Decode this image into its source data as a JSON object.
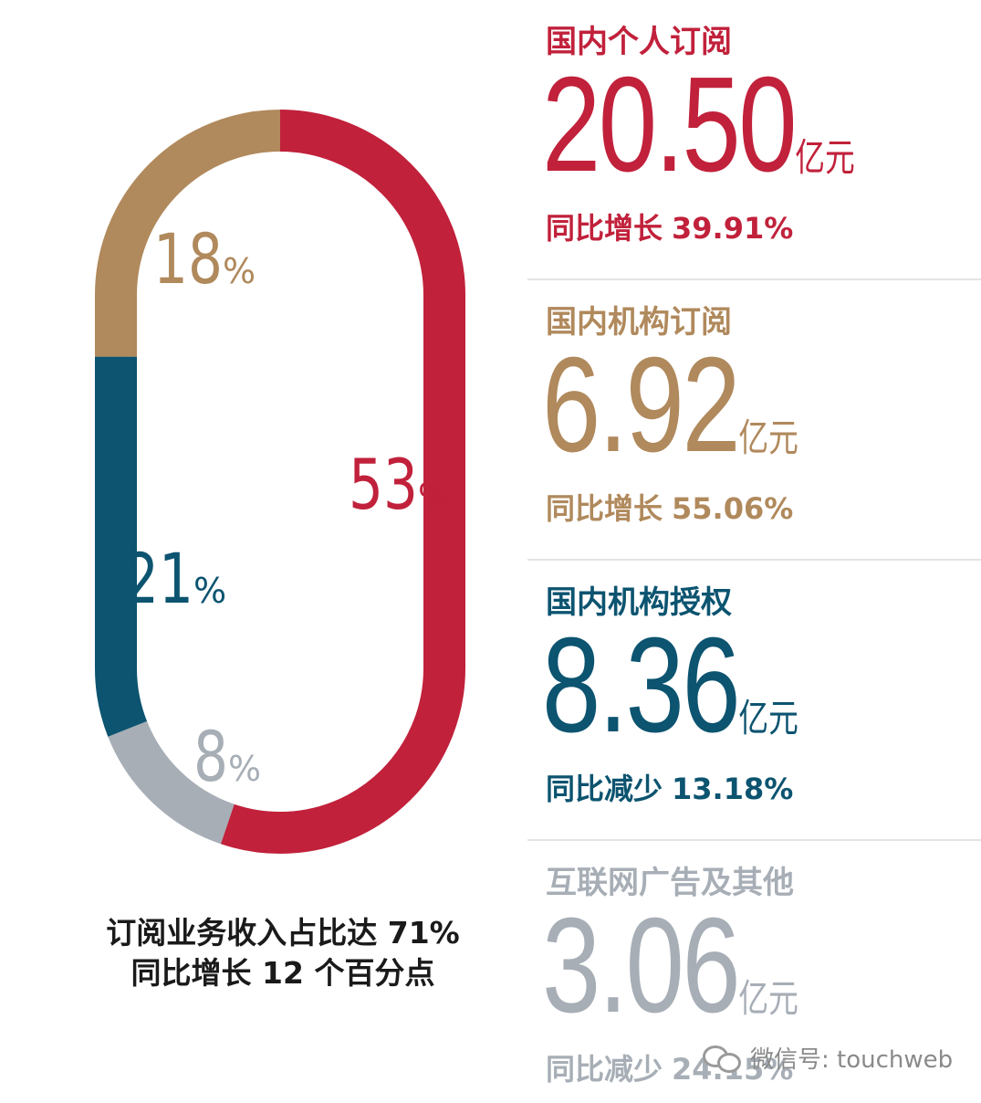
{
  "colors": {
    "red": "#c1213b",
    "gold": "#b0895c",
    "teal": "#0c5470",
    "gray": "#a7aeb6",
    "text": "#1a1a1a"
  },
  "chart_data": {
    "type": "pie",
    "style": "capsule-donut",
    "categories": [
      "国内个人订阅",
      "国内机构订阅",
      "国内机构授权",
      "互联网广告及其他"
    ],
    "values": [
      53,
      18,
      21,
      8
    ],
    "labels": [
      "53%",
      "18%",
      "21%",
      "8%"
    ],
    "legend": "none"
  },
  "summary": {
    "line1": "订阅业务收入占比达 71%",
    "line2": "同比增长 12 个百分点"
  },
  "metrics": [
    {
      "title": "国内个人订阅",
      "value": "20.50",
      "unit": "亿元",
      "change_label": "同比增长",
      "change_value": "39.91%",
      "color": "#c1213b"
    },
    {
      "title": "国内机构订阅",
      "value": "6.92",
      "unit": "亿元",
      "change_label": "同比增长",
      "change_value": "55.06%",
      "color": "#b0895c"
    },
    {
      "title": "国内机构授权",
      "value": "8.36",
      "unit": "亿元",
      "change_label": "同比减少",
      "change_value": "13.18%",
      "color": "#0c5470"
    },
    {
      "title": "互联网广告及其他",
      "value": "3.06",
      "unit": "亿元",
      "change_label": "同比减少",
      "change_value": "24.15%",
      "color": "#a7aeb6"
    }
  ],
  "watermark": {
    "icon": "wechat-icon",
    "text": "微信号: touchweb"
  }
}
